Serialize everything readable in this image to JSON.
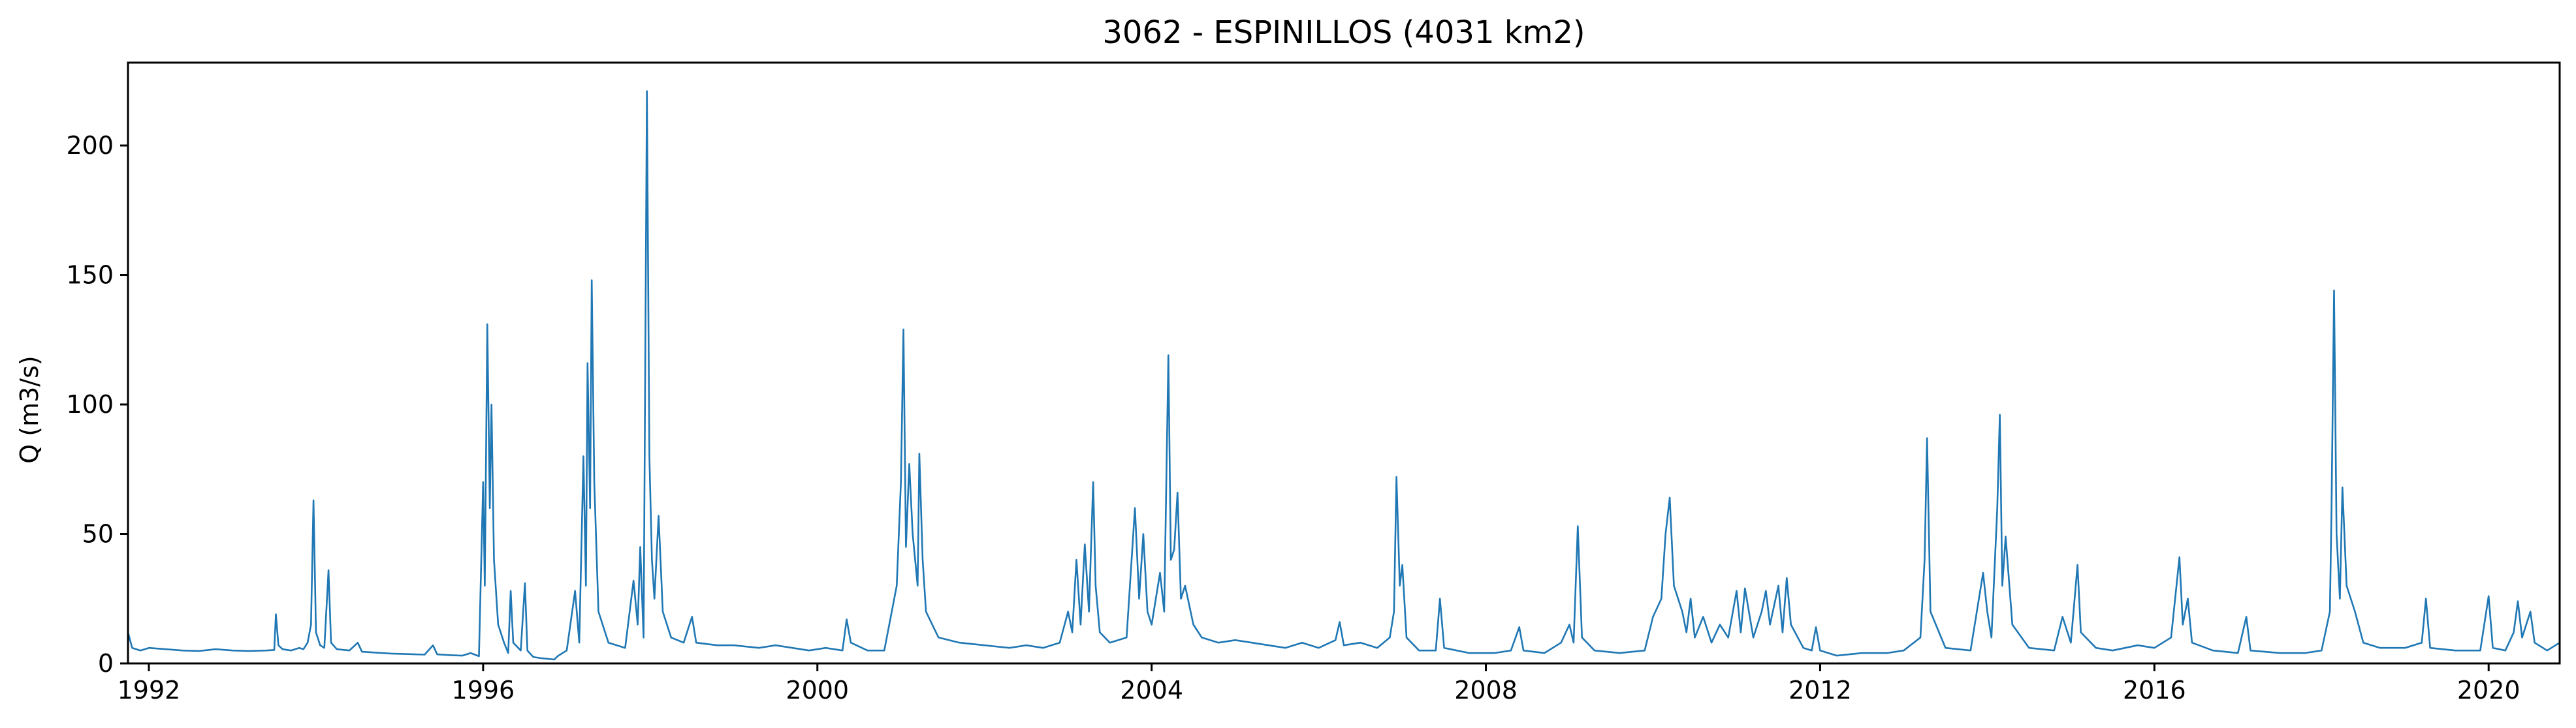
{
  "chart_data": {
    "type": "line",
    "title": "3062 - ESPINILLOS (4031 km2)",
    "xlabel": "",
    "ylabel": "Q (m3/s)",
    "xlim": [
      1991.75,
      2020.85
    ],
    "ylim": [
      0,
      232
    ],
    "grid": false,
    "legend": "none",
    "x_ticks": [
      1992,
      1996,
      2000,
      2004,
      2008,
      2012,
      2016,
      2020
    ],
    "y_ticks": [
      0,
      50,
      100,
      150,
      200
    ],
    "series_color": "#1f77b4",
    "series": [
      {
        "values": [
          [
            1991.75,
            12
          ],
          [
            1991.8,
            6
          ],
          [
            1991.9,
            5
          ],
          [
            1992.0,
            6
          ],
          [
            1992.2,
            5.5
          ],
          [
            1992.4,
            5
          ],
          [
            1992.6,
            4.8
          ],
          [
            1992.8,
            5.5
          ],
          [
            1993.0,
            5
          ],
          [
            1993.2,
            4.8
          ],
          [
            1993.4,
            5
          ],
          [
            1993.5,
            5.2
          ],
          [
            1993.52,
            19
          ],
          [
            1993.55,
            7
          ],
          [
            1993.6,
            5.5
          ],
          [
            1993.7,
            5
          ],
          [
            1993.8,
            6
          ],
          [
            1993.85,
            5.5
          ],
          [
            1993.9,
            8
          ],
          [
            1993.94,
            15
          ],
          [
            1993.97,
            63
          ],
          [
            1994.0,
            12
          ],
          [
            1994.05,
            7
          ],
          [
            1994.1,
            6
          ],
          [
            1994.15,
            36
          ],
          [
            1994.18,
            8
          ],
          [
            1994.25,
            5.5
          ],
          [
            1994.4,
            5
          ],
          [
            1994.5,
            8
          ],
          [
            1994.55,
            4.5
          ],
          [
            1994.7,
            4.2
          ],
          [
            1994.9,
            3.8
          ],
          [
            1995.1,
            3.6
          ],
          [
            1995.3,
            3.4
          ],
          [
            1995.4,
            7
          ],
          [
            1995.45,
            3.5
          ],
          [
            1995.6,
            3.2
          ],
          [
            1995.75,
            3
          ],
          [
            1995.85,
            4
          ],
          [
            1995.95,
            2.8
          ],
          [
            1996.0,
            70
          ],
          [
            1996.02,
            30
          ],
          [
            1996.05,
            131
          ],
          [
            1996.08,
            60
          ],
          [
            1996.1,
            100
          ],
          [
            1996.13,
            40
          ],
          [
            1996.18,
            15
          ],
          [
            1996.25,
            8
          ],
          [
            1996.3,
            4
          ],
          [
            1996.33,
            28
          ],
          [
            1996.36,
            8
          ],
          [
            1996.45,
            5
          ],
          [
            1996.5,
            31
          ],
          [
            1996.53,
            5
          ],
          [
            1996.6,
            2.5
          ],
          [
            1996.7,
            2
          ],
          [
            1996.85,
            1.5
          ],
          [
            1996.9,
            3
          ],
          [
            1997.0,
            5
          ],
          [
            1997.1,
            28
          ],
          [
            1997.15,
            8
          ],
          [
            1997.2,
            80
          ],
          [
            1997.23,
            30
          ],
          [
            1997.25,
            116
          ],
          [
            1997.28,
            60
          ],
          [
            1997.3,
            148
          ],
          [
            1997.33,
            70
          ],
          [
            1997.38,
            20
          ],
          [
            1997.5,
            8
          ],
          [
            1997.7,
            6
          ],
          [
            1997.8,
            32
          ],
          [
            1997.85,
            15
          ],
          [
            1997.88,
            45
          ],
          [
            1997.92,
            10
          ],
          [
            1997.96,
            221
          ],
          [
            1997.99,
            80
          ],
          [
            1998.02,
            40
          ],
          [
            1998.05,
            25
          ],
          [
            1998.1,
            57
          ],
          [
            1998.15,
            20
          ],
          [
            1998.25,
            10
          ],
          [
            1998.4,
            8
          ],
          [
            1998.5,
            18
          ],
          [
            1998.55,
            8
          ],
          [
            1998.8,
            7
          ],
          [
            1999.0,
            7
          ],
          [
            1999.3,
            6
          ],
          [
            1999.5,
            7
          ],
          [
            1999.7,
            6
          ],
          [
            1999.9,
            5
          ],
          [
            2000.1,
            6
          ],
          [
            2000.3,
            5
          ],
          [
            2000.35,
            17
          ],
          [
            2000.4,
            8
          ],
          [
            2000.6,
            5
          ],
          [
            2000.8,
            5
          ],
          [
            2000.95,
            30
          ],
          [
            2001.0,
            70
          ],
          [
            2001.03,
            129
          ],
          [
            2001.06,
            45
          ],
          [
            2001.1,
            77
          ],
          [
            2001.14,
            50
          ],
          [
            2001.2,
            30
          ],
          [
            2001.22,
            81
          ],
          [
            2001.26,
            40
          ],
          [
            2001.3,
            20
          ],
          [
            2001.45,
            10
          ],
          [
            2001.7,
            8
          ],
          [
            2002.0,
            7
          ],
          [
            2002.3,
            6
          ],
          [
            2002.5,
            7
          ],
          [
            2002.7,
            6
          ],
          [
            2002.9,
            8
          ],
          [
            2003.0,
            20
          ],
          [
            2003.05,
            12
          ],
          [
            2003.1,
            40
          ],
          [
            2003.15,
            15
          ],
          [
            2003.2,
            46
          ],
          [
            2003.25,
            20
          ],
          [
            2003.3,
            70
          ],
          [
            2003.33,
            30
          ],
          [
            2003.38,
            12
          ],
          [
            2003.5,
            8
          ],
          [
            2003.7,
            10
          ],
          [
            2003.8,
            60
          ],
          [
            2003.85,
            25
          ],
          [
            2003.9,
            50
          ],
          [
            2003.95,
            20
          ],
          [
            2004.0,
            15
          ],
          [
            2004.1,
            35
          ],
          [
            2004.15,
            20
          ],
          [
            2004.2,
            119
          ],
          [
            2004.23,
            40
          ],
          [
            2004.27,
            44
          ],
          [
            2004.31,
            66
          ],
          [
            2004.35,
            25
          ],
          [
            2004.4,
            30
          ],
          [
            2004.5,
            15
          ],
          [
            2004.6,
            10
          ],
          [
            2004.8,
            8
          ],
          [
            2005.0,
            9
          ],
          [
            2005.2,
            8
          ],
          [
            2005.4,
            7
          ],
          [
            2005.6,
            6
          ],
          [
            2005.8,
            8
          ],
          [
            2006.0,
            6
          ],
          [
            2006.2,
            9
          ],
          [
            2006.25,
            16
          ],
          [
            2006.3,
            7
          ],
          [
            2006.5,
            8
          ],
          [
            2006.7,
            6
          ],
          [
            2006.85,
            10
          ],
          [
            2006.9,
            20
          ],
          [
            2006.93,
            72
          ],
          [
            2006.97,
            30
          ],
          [
            2007.0,
            38
          ],
          [
            2007.05,
            10
          ],
          [
            2007.2,
            5
          ],
          [
            2007.4,
            5
          ],
          [
            2007.45,
            25
          ],
          [
            2007.5,
            6
          ],
          [
            2007.8,
            4
          ],
          [
            2008.1,
            4
          ],
          [
            2008.3,
            5
          ],
          [
            2008.4,
            14
          ],
          [
            2008.45,
            5
          ],
          [
            2008.7,
            4
          ],
          [
            2008.9,
            8
          ],
          [
            2009.0,
            15
          ],
          [
            2009.05,
            8
          ],
          [
            2009.1,
            53
          ],
          [
            2009.15,
            10
          ],
          [
            2009.3,
            5
          ],
          [
            2009.6,
            4
          ],
          [
            2009.9,
            5
          ],
          [
            2010.0,
            18
          ],
          [
            2010.1,
            25
          ],
          [
            2010.15,
            50
          ],
          [
            2010.2,
            64
          ],
          [
            2010.25,
            30
          ],
          [
            2010.35,
            20
          ],
          [
            2010.4,
            12
          ],
          [
            2010.45,
            25
          ],
          [
            2010.5,
            10
          ],
          [
            2010.6,
            18
          ],
          [
            2010.7,
            8
          ],
          [
            2010.8,
            15
          ],
          [
            2010.9,
            10
          ],
          [
            2011.0,
            28
          ],
          [
            2011.05,
            12
          ],
          [
            2011.1,
            29
          ],
          [
            2011.2,
            10
          ],
          [
            2011.3,
            20
          ],
          [
            2011.35,
            28
          ],
          [
            2011.4,
            15
          ],
          [
            2011.5,
            30
          ],
          [
            2011.55,
            12
          ],
          [
            2011.6,
            33
          ],
          [
            2011.65,
            15
          ],
          [
            2011.8,
            6
          ],
          [
            2011.9,
            5
          ],
          [
            2011.95,
            14
          ],
          [
            2012.0,
            5
          ],
          [
            2012.2,
            3
          ],
          [
            2012.5,
            4
          ],
          [
            2012.8,
            4
          ],
          [
            2013.0,
            5
          ],
          [
            2013.2,
            10
          ],
          [
            2013.25,
            40
          ],
          [
            2013.28,
            87
          ],
          [
            2013.32,
            20
          ],
          [
            2013.5,
            6
          ],
          [
            2013.8,
            5
          ],
          [
            2013.95,
            35
          ],
          [
            2014.0,
            20
          ],
          [
            2014.05,
            10
          ],
          [
            2014.12,
            60
          ],
          [
            2014.15,
            96
          ],
          [
            2014.18,
            30
          ],
          [
            2014.22,
            49
          ],
          [
            2014.3,
            15
          ],
          [
            2014.5,
            6
          ],
          [
            2014.8,
            5
          ],
          [
            2014.9,
            18
          ],
          [
            2015.0,
            8
          ],
          [
            2015.08,
            38
          ],
          [
            2015.12,
            12
          ],
          [
            2015.3,
            6
          ],
          [
            2015.5,
            5
          ],
          [
            2015.8,
            7
          ],
          [
            2016.0,
            6
          ],
          [
            2016.2,
            10
          ],
          [
            2016.3,
            41
          ],
          [
            2016.34,
            15
          ],
          [
            2016.4,
            25
          ],
          [
            2016.45,
            8
          ],
          [
            2016.7,
            5
          ],
          [
            2017.0,
            4
          ],
          [
            2017.1,
            18
          ],
          [
            2017.15,
            5
          ],
          [
            2017.5,
            4
          ],
          [
            2017.8,
            4
          ],
          [
            2018.0,
            5
          ],
          [
            2018.1,
            20
          ],
          [
            2018.12,
            60
          ],
          [
            2018.15,
            144
          ],
          [
            2018.18,
            50
          ],
          [
            2018.22,
            25
          ],
          [
            2018.25,
            68
          ],
          [
            2018.3,
            30
          ],
          [
            2018.4,
            20
          ],
          [
            2018.5,
            8
          ],
          [
            2018.7,
            6
          ],
          [
            2019.0,
            6
          ],
          [
            2019.2,
            8
          ],
          [
            2019.25,
            25
          ],
          [
            2019.3,
            6
          ],
          [
            2019.6,
            5
          ],
          [
            2019.9,
            5
          ],
          [
            2020.0,
            26
          ],
          [
            2020.05,
            6
          ],
          [
            2020.2,
            5
          ],
          [
            2020.3,
            12
          ],
          [
            2020.35,
            24
          ],
          [
            2020.4,
            10
          ],
          [
            2020.5,
            20
          ],
          [
            2020.55,
            8
          ],
          [
            2020.7,
            5
          ],
          [
            2020.85,
            8
          ]
        ]
      }
    ]
  }
}
